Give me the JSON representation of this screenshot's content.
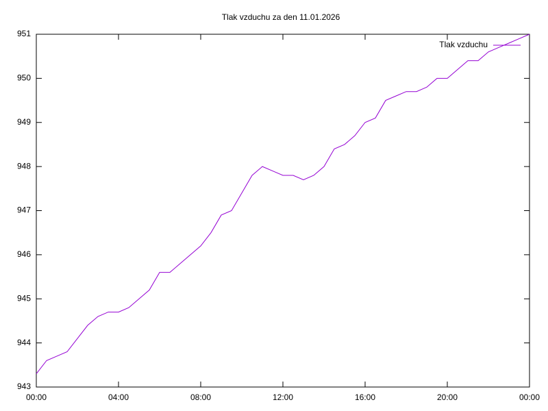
{
  "chart_data": {
    "type": "line",
    "title": "Tlak vzduchu za den 11.01.2026",
    "x": [
      0,
      0.5,
      1,
      1.5,
      2,
      2.5,
      3,
      3.5,
      4,
      4.5,
      5,
      5.5,
      6,
      6.5,
      7,
      7.5,
      8,
      8.5,
      9,
      9.5,
      10,
      10.5,
      11,
      11.5,
      12,
      12.5,
      13,
      13.5,
      14,
      14.5,
      15,
      15.5,
      16,
      16.5,
      17,
      17.5,
      18,
      18.5,
      19,
      19.5,
      20,
      20.5,
      21,
      21.5,
      22,
      22.5,
      23,
      23.5,
      24
    ],
    "series": [
      {
        "name": "Tlak vzduchu",
        "color": "#9400d3",
        "values": [
          943.3,
          943.6,
          943.7,
          943.8,
          944.1,
          944.4,
          944.6,
          944.7,
          944.7,
          944.8,
          945.0,
          945.2,
          945.6,
          945.6,
          945.8,
          946.0,
          946.2,
          946.5,
          946.9,
          947.0,
          947.4,
          947.8,
          948.0,
          947.9,
          947.8,
          947.8,
          947.7,
          947.8,
          948.0,
          948.4,
          948.5,
          948.7,
          949.0,
          949.1,
          949.5,
          949.6,
          949.7,
          949.7,
          949.8,
          950.0,
          950.0,
          950.2,
          950.4,
          950.4,
          950.6,
          950.7,
          950.8,
          950.9,
          951.0
        ]
      }
    ],
    "xlim": [
      0,
      24
    ],
    "xticks": [
      {
        "value": 0,
        "label": "00:00"
      },
      {
        "value": 4,
        "label": "04:00"
      },
      {
        "value": 8,
        "label": "08:00"
      },
      {
        "value": 12,
        "label": "12:00"
      },
      {
        "value": 16,
        "label": "16:00"
      },
      {
        "value": 20,
        "label": "20:00"
      },
      {
        "value": 24,
        "label": "00:00"
      }
    ],
    "ylim": [
      943,
      951
    ],
    "yticks": [
      943,
      944,
      945,
      946,
      947,
      948,
      949,
      950,
      951
    ],
    "grid": false,
    "legend": "top-right"
  }
}
